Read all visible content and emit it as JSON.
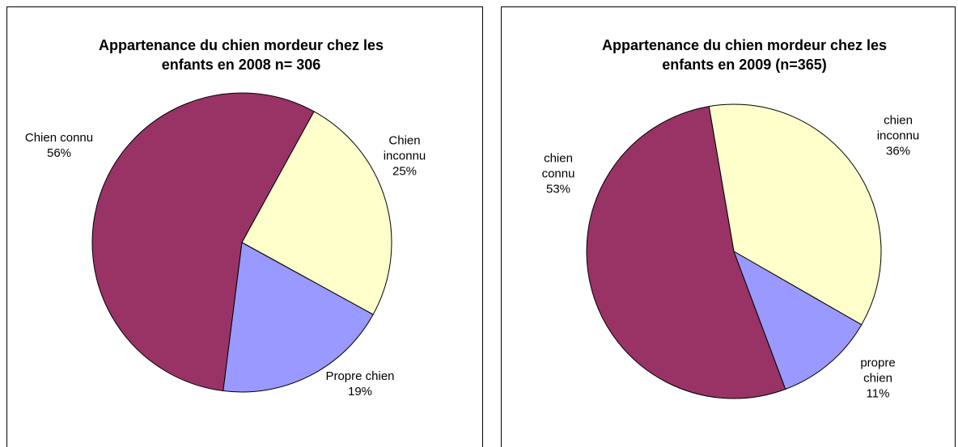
{
  "chart_data": [
    {
      "type": "pie",
      "title": [
        "Appartenance du chien mordeur chez les",
        "enfants en 2008  n= 306"
      ],
      "categories": [
        "Chien connu",
        "Chien inconnu",
        "Propre chien"
      ],
      "values": [
        56,
        25,
        19
      ],
      "value_labels": [
        "56%",
        "25%",
        "19%"
      ],
      "colors": [
        "#993366",
        "#FFFFCC",
        "#9999FF"
      ]
    },
    {
      "type": "pie",
      "title": [
        "Appartenance du chien mordeur chez les",
        "enfants en 2009  (n=365)"
      ],
      "categories": [
        "chien connu",
        "chien inconnu",
        "propre chien"
      ],
      "values": [
        53,
        36,
        11
      ],
      "value_labels": [
        "53%",
        "36%",
        "11%"
      ],
      "colors": [
        "#993366",
        "#FFFFCC",
        "#9999FF"
      ]
    }
  ]
}
